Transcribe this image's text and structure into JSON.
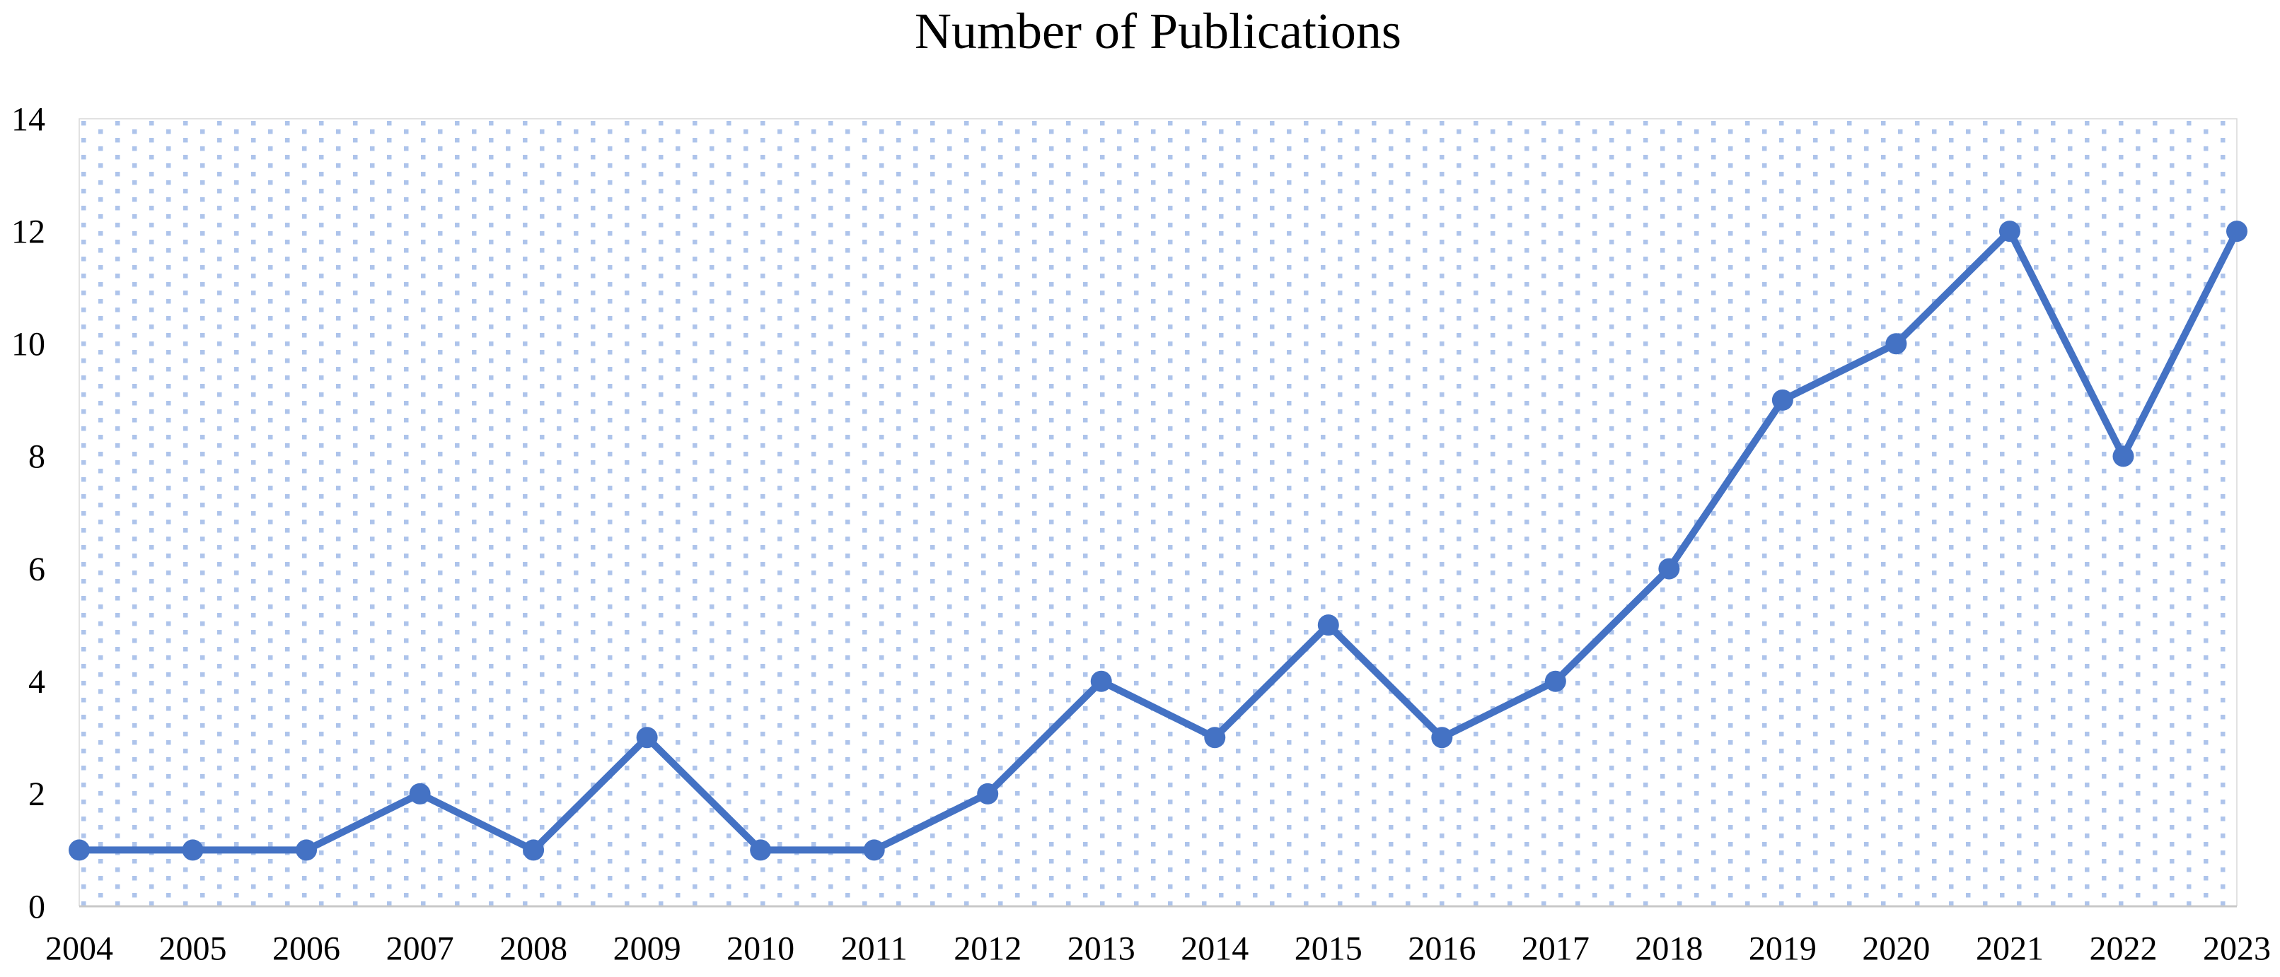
{
  "chart_data": {
    "type": "line",
    "title": "Number of Publications",
    "categories": [
      "2004",
      "2005",
      "2006",
      "2007",
      "2008",
      "2009",
      "2010",
      "2011",
      "2012",
      "2013",
      "2014",
      "2015",
      "2016",
      "2017",
      "2018",
      "2019",
      "2020",
      "2021",
      "2022",
      "2023"
    ],
    "values": [
      1,
      1,
      1,
      2,
      1,
      3,
      1,
      1,
      2,
      4,
      3,
      5,
      3,
      4,
      6,
      9,
      10,
      12,
      8,
      12
    ],
    "xlabel": "",
    "ylabel": "",
    "ylim": [
      0,
      14
    ],
    "yticks": [
      0,
      2,
      4,
      6,
      8,
      10,
      12,
      14
    ],
    "legend": "none",
    "grid": "off",
    "plot_area_fill": "dotted-pattern",
    "colors": {
      "line": "#4472C4",
      "marker": "#4472C4",
      "dot_fill": "#AEC4EB",
      "axis_line": "#C8C8C8",
      "plot_border": "#D9D9D9",
      "text": "#000000",
      "background": "#FFFFFF"
    }
  }
}
